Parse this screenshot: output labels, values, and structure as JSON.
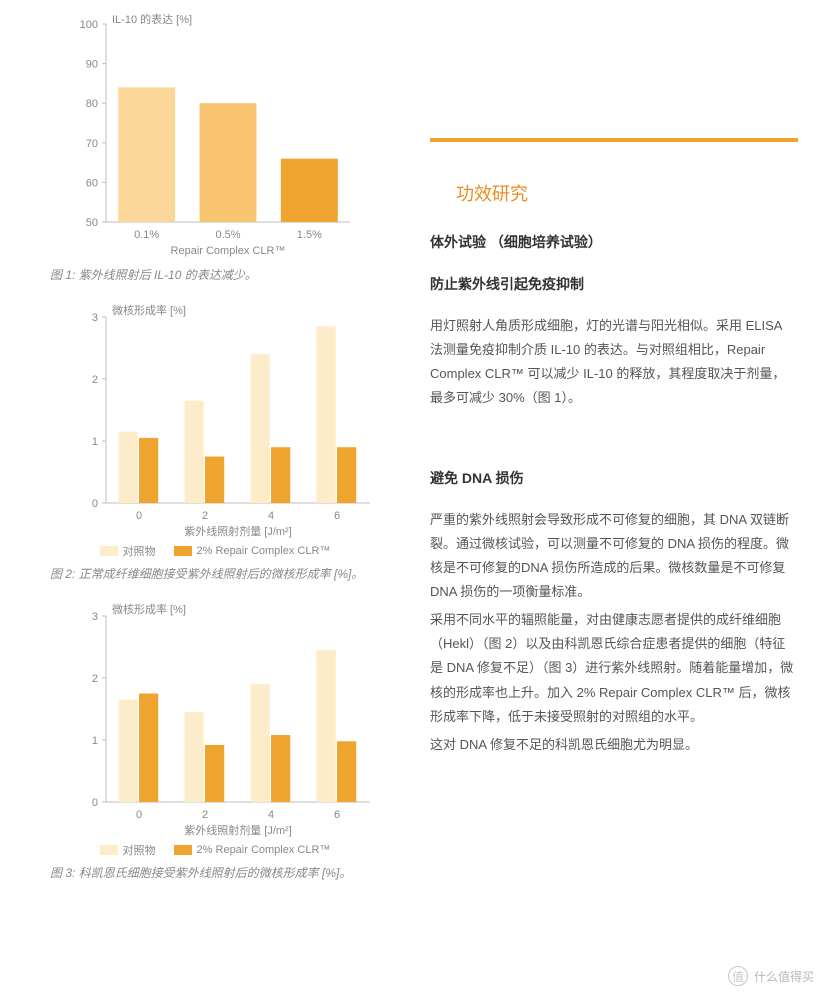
{
  "colors": {
    "accent": "#ed8b1f",
    "bar_light": "#fbd79a",
    "bar_mid": "#f8c46f",
    "bar_dark": "#f0a430",
    "cream": "#fdecc9",
    "axis": "#bfbfbf",
    "caption": "#888888",
    "body": "#555555",
    "title": "#333333"
  },
  "chart1": {
    "type": "bar",
    "title": "IL-10 的表达 [%]",
    "xlabel": "Repair Complex CLR™",
    "categories": [
      "0.1%",
      "0.5%",
      "1.5%"
    ],
    "values": [
      84,
      80,
      66
    ],
    "bar_colors": [
      "#fbd79a",
      "#f8c46f",
      "#f0a430"
    ],
    "ylim": [
      50,
      100
    ],
    "ytick_step": 10,
    "label_fontsize": 11
  },
  "caption1": "图 1: 紫外线照射后 IL-10 的表达减少。",
  "chart2": {
    "type": "grouped-bar",
    "title": "微核形成率 [%]",
    "xlabel": "紫外线照射剂量 [J/m²]",
    "categories": [
      "0",
      "2",
      "4",
      "6"
    ],
    "series": [
      {
        "name": "对照物",
        "color": "#fdecc9",
        "values": [
          1.15,
          1.65,
          2.4,
          2.85
        ]
      },
      {
        "name": "2% Repair Complex CLR™",
        "color": "#f0a430",
        "values": [
          1.05,
          0.75,
          0.9,
          0.9
        ]
      }
    ],
    "ylim": [
      0,
      3
    ],
    "ytick_step": 1,
    "label_fontsize": 11
  },
  "caption2": "图 2: 正常成纤维细胞接受紫外线照射后的微核形成率 [%]。",
  "chart3": {
    "type": "grouped-bar",
    "title": "微核形成率 [%]",
    "xlabel": "紫外线照射剂量 [J/m²]",
    "categories": [
      "0",
      "2",
      "4",
      "6"
    ],
    "series": [
      {
        "name": "对照物",
        "color": "#fdecc9",
        "values": [
          1.65,
          1.45,
          1.9,
          2.45
        ]
      },
      {
        "name": "2% Repair Complex CLR™",
        "color": "#f0a430",
        "values": [
          1.75,
          0.92,
          1.08,
          0.98
        ]
      }
    ],
    "ylim": [
      0,
      3
    ],
    "ytick_step": 1,
    "label_fontsize": 11
  },
  "caption3": "图 3: 科凯恩氏细胞接受紫外线照射后的微核形成率 [%]。",
  "right": {
    "section_title": "功效研究",
    "sub1": "体外试验 （细胞培养试验）",
    "sub2": "防止紫外线引起免疫抑制",
    "p1": "用灯照射人角质形成细胞，灯的光谱与阳光相似。采用 ELISA 法测量免疫抑制介质 IL-10 的表达。与对照组相比，Repair Complex CLR™ 可以减少 IL-10 的释放，其程度取决于剂量，最多可减少 30%（图 1）。",
    "sub3": "避免 DNA 损伤",
    "p2": "严重的紫外线照射会导致形成不可修复的细胞，其 DNA 双链断裂。通过微核试验，可以测量不可修复的 DNA 损伤的程度。微核是不可修复的DNA 损伤所造成的后果。微核数量是不可修复 DNA 损伤的一项衡量标准。",
    "p3": "采用不同水平的辐照能量，对由健康志愿者提供的成纤维细胞（Hekl）（图 2）以及由科凯恩氏综合症患者提供的细胞（特征是 DNA 修复不足）（图 3）进行紫外线照射。随着能量增加，微核的形成率也上升。加入 2% Repair Complex CLR™ 后，微核形成率下降，低于未接受照射的对照组的水平。",
    "p4": "这对 DNA 修复不足的科凯恩氏细胞尤为明显。"
  },
  "watermark": "什么值得买"
}
